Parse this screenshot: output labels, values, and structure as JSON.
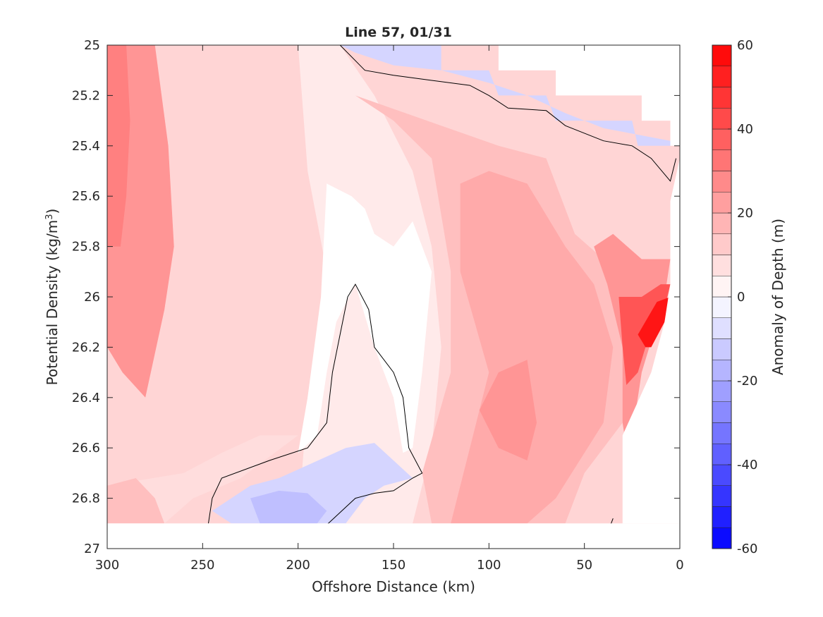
{
  "chart_data": {
    "type": "heatmap",
    "subtype": "filled-contour",
    "title": "Line 57, 01/31",
    "xlabel": "Offshore Distance (km)",
    "ylabel_main": "Potential Density (kg/m",
    "ylabel_sup": "3",
    "ylabel_close": ")",
    "xlim": [
      300,
      0
    ],
    "ylim": [
      27,
      25
    ],
    "x_reversed": true,
    "y_reversed": true,
    "xticks": [
      300,
      250,
      200,
      150,
      100,
      50,
      0
    ],
    "yticks": [
      25,
      25.2,
      25.4,
      25.6,
      25.8,
      26,
      26.2,
      26.4,
      26.6,
      26.8,
      27
    ],
    "colorbar": {
      "label": "Anomaly of Depth (m)",
      "range": [
        -60,
        60
      ],
      "ticks": [
        60,
        40,
        20,
        0,
        -20,
        -40,
        -60
      ],
      "levels": [
        -60,
        -55,
        -50,
        -45,
        -40,
        -35,
        -30,
        -25,
        -20,
        -15,
        -10,
        -5,
        0,
        5,
        10,
        15,
        20,
        25,
        30,
        35,
        40,
        45,
        50,
        55,
        60
      ],
      "colormap": "blue-white-red"
    },
    "zero_contour_color": "#000000",
    "regions": [
      {
        "name": "offshore-core",
        "value": 25,
        "points": [
          [
            300,
            25
          ],
          [
            275,
            25
          ],
          [
            268,
            25.4
          ],
          [
            265,
            25.8
          ],
          [
            270,
            26.05
          ],
          [
            280,
            26.4
          ],
          [
            292,
            26.3
          ],
          [
            300,
            26.2
          ]
        ]
      },
      {
        "name": "offshore-max",
        "value": 30,
        "points": [
          [
            300,
            25
          ],
          [
            290,
            25
          ],
          [
            288,
            25.3
          ],
          [
            290,
            25.6
          ],
          [
            293,
            25.8
          ],
          [
            300,
            25.8
          ]
        ]
      },
      {
        "name": "west-deep-patch",
        "value": 15,
        "points": [
          [
            300,
            26.75
          ],
          [
            285,
            26.72
          ],
          [
            275,
            26.8
          ],
          [
            270,
            26.9
          ],
          [
            300,
            26.9
          ]
        ]
      },
      {
        "name": "near-shore-band",
        "value": 15,
        "points": [
          [
            130,
            25.45
          ],
          [
            150,
            25.3
          ],
          [
            170,
            25.2
          ],
          [
            95,
            25.4
          ],
          [
            70,
            25.45
          ],
          [
            55,
            25.75
          ],
          [
            40,
            25.85
          ],
          [
            25,
            26.0
          ],
          [
            30,
            26.5
          ],
          [
            50,
            26.7
          ],
          [
            60,
            26.9
          ],
          [
            130,
            26.9
          ],
          [
            135,
            26.7
          ],
          [
            120,
            26.3
          ],
          [
            120,
            25.9
          ]
        ]
      },
      {
        "name": "near-shore-mid",
        "value": 20,
        "points": [
          [
            115,
            25.55
          ],
          [
            100,
            25.5
          ],
          [
            80,
            25.55
          ],
          [
            60,
            25.8
          ],
          [
            45,
            25.95
          ],
          [
            35,
            26.2
          ],
          [
            40,
            26.5
          ],
          [
            65,
            26.8
          ],
          [
            80,
            26.9
          ],
          [
            120,
            26.9
          ],
          [
            110,
            26.6
          ],
          [
            100,
            26.3
          ],
          [
            115,
            25.9
          ]
        ]
      },
      {
        "name": "deep-nearshore-core",
        "value": 25,
        "points": [
          [
            105,
            26.45
          ],
          [
            95,
            26.3
          ],
          [
            80,
            26.25
          ],
          [
            75,
            26.5
          ],
          [
            80,
            26.65
          ],
          [
            95,
            26.6
          ]
        ]
      },
      {
        "name": "coastal-core",
        "value": 25,
        "points": [
          [
            45,
            25.8
          ],
          [
            38,
            25.95
          ],
          [
            30,
            26.2
          ],
          [
            30,
            26.5
          ],
          [
            28,
            26.6
          ],
          [
            24,
            26.5
          ],
          [
            20,
            26.3
          ],
          [
            12,
            26.1
          ],
          [
            7,
            25.95
          ],
          [
            5,
            25.85
          ],
          [
            20,
            25.85
          ],
          [
            35,
            25.75
          ]
        ]
      },
      {
        "name": "coastal-max",
        "value": 40,
        "points": [
          [
            32,
            26.0
          ],
          [
            30,
            26.2
          ],
          [
            28,
            26.35
          ],
          [
            22,
            26.3
          ],
          [
            18,
            26.2
          ],
          [
            12,
            26.1
          ],
          [
            8,
            26.05
          ],
          [
            5,
            25.95
          ],
          [
            10,
            25.95
          ],
          [
            20,
            26.0
          ]
        ]
      },
      {
        "name": "coastal-peak",
        "value": 55,
        "points": [
          [
            22,
            26.15
          ],
          [
            18,
            26.2
          ],
          [
            15,
            26.2
          ],
          [
            8,
            26.1
          ],
          [
            5,
            26.0
          ],
          [
            12,
            26.02
          ]
        ]
      },
      {
        "name": "neg-top-left",
        "value": -10,
        "points": [
          [
            178,
            25
          ],
          [
            125,
            25
          ],
          [
            125,
            25.1
          ],
          [
            100,
            25.1
          ],
          [
            95,
            25.2
          ],
          [
            70,
            25.2
          ],
          [
            65,
            25.3
          ],
          [
            25,
            25.3
          ],
          [
            22,
            25.4
          ],
          [
            5,
            25.4
          ],
          [
            5,
            25.38
          ],
          [
            40,
            25.33
          ],
          [
            60,
            25.27
          ],
          [
            80,
            25.2
          ],
          [
            100,
            25.15
          ],
          [
            125,
            25.1
          ],
          [
            150,
            25.08
          ],
          [
            170,
            25.03
          ]
        ]
      },
      {
        "name": "neg-deep",
        "value": -10,
        "points": [
          [
            245,
            26.85
          ],
          [
            225,
            26.75
          ],
          [
            210,
            26.72
          ],
          [
            175,
            26.6
          ],
          [
            160,
            26.58
          ],
          [
            150,
            26.65
          ],
          [
            140,
            26.72
          ],
          [
            155,
            26.75
          ],
          [
            165,
            26.8
          ],
          [
            175,
            26.9
          ],
          [
            235,
            26.9
          ]
        ]
      },
      {
        "name": "neg-deep-core",
        "value": -15,
        "points": [
          [
            225,
            26.8
          ],
          [
            210,
            26.77
          ],
          [
            195,
            26.78
          ],
          [
            185,
            26.85
          ],
          [
            190,
            26.9
          ],
          [
            220,
            26.9
          ]
        ]
      }
    ],
    "zero_contours": [
      {
        "name": "upper-zero-line",
        "points": [
          [
            178,
            25
          ],
          [
            165,
            25.1
          ],
          [
            150,
            25.12
          ],
          [
            130,
            25.14
          ],
          [
            110,
            25.16
          ],
          [
            100,
            25.2
          ],
          [
            90,
            25.25
          ],
          [
            70,
            25.26
          ],
          [
            60,
            25.32
          ],
          [
            40,
            25.38
          ],
          [
            25,
            25.4
          ],
          [
            15,
            25.45
          ],
          [
            5,
            25.54
          ],
          [
            2,
            25.45
          ]
        ]
      },
      {
        "name": "mid-zero-line",
        "points": [
          [
            247,
            26.9
          ],
          [
            245,
            26.8
          ],
          [
            240,
            26.72
          ],
          [
            215,
            26.65
          ],
          [
            195,
            26.6
          ],
          [
            185,
            26.5
          ],
          [
            182,
            26.3
          ],
          [
            178,
            26.15
          ],
          [
            174,
            26.0
          ],
          [
            170,
            25.95
          ],
          [
            163,
            26.05
          ],
          [
            160,
            26.2
          ],
          [
            150,
            26.3
          ],
          [
            145,
            26.4
          ],
          [
            142,
            26.6
          ],
          [
            135,
            26.7
          ],
          [
            140,
            26.72
          ],
          [
            150,
            26.77
          ],
          [
            160,
            26.78
          ],
          [
            170,
            26.8
          ],
          [
            187,
            26.92
          ]
        ]
      },
      {
        "name": "small-zero-tick",
        "points": [
          [
            37,
            26.92
          ],
          [
            35,
            26.88
          ]
        ]
      }
    ],
    "nodata_regions": [
      {
        "name": "top-right-gap",
        "points": [
          [
            125,
            25
          ],
          [
            0,
            25
          ],
          [
            0,
            25.4
          ],
          [
            5,
            25.4
          ],
          [
            5,
            25.3
          ],
          [
            20,
            25.3
          ],
          [
            20,
            25.2
          ],
          [
            65,
            25.2
          ],
          [
            65,
            25.1
          ],
          [
            95,
            25.1
          ],
          [
            95,
            25.0
          ]
        ]
      },
      {
        "name": "bottom-gap",
        "points": [
          [
            300,
            26.9
          ],
          [
            0,
            26.9
          ],
          [
            0,
            27
          ],
          [
            300,
            27
          ]
        ]
      },
      {
        "name": "right-edge-gap",
        "points": [
          [
            5,
            25.62
          ],
          [
            0,
            25.45
          ],
          [
            0,
            26.9
          ],
          [
            30,
            26.9
          ],
          [
            30,
            26.55
          ],
          [
            15,
            26.3
          ],
          [
            8,
            26.1
          ],
          [
            5,
            25.95
          ]
        ]
      }
    ]
  }
}
